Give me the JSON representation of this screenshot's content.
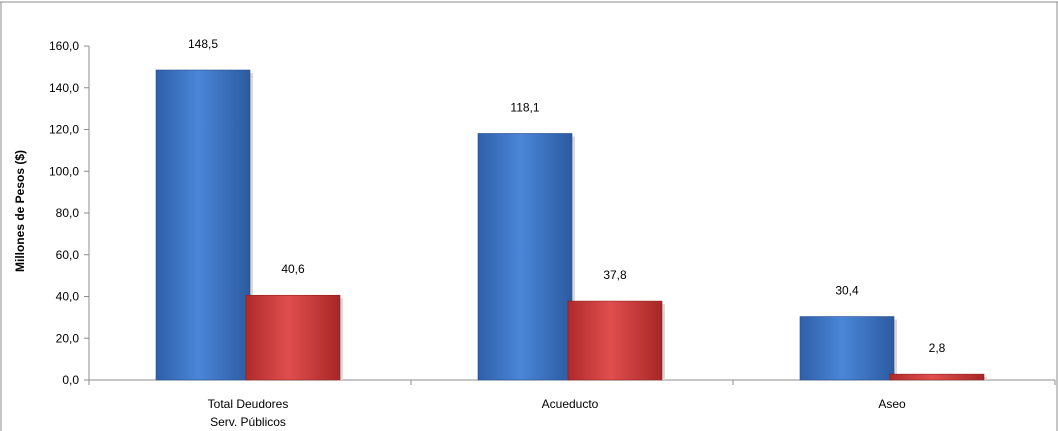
{
  "chart_data": {
    "type": "bar",
    "title": "",
    "xlabel": "",
    "ylabel": "Millones de Pesos ($)",
    "ylim": [
      0,
      160
    ],
    "yticks": [
      0,
      20,
      40,
      60,
      80,
      100,
      120,
      140,
      160
    ],
    "ytick_labels": [
      "0,0",
      "20,0",
      "40,0",
      "60,0",
      "80,0",
      "100,0",
      "120,0",
      "140,0",
      "160,0"
    ],
    "categories": [
      [
        "Total Deudores",
        "Serv. Públicos"
      ],
      [
        "Acueducto"
      ],
      [
        "Aseo"
      ]
    ],
    "series": [
      {
        "values": [
          148.5,
          118.1,
          30.4
        ],
        "labels": [
          "148,5",
          "118,1",
          "30,4"
        ],
        "color": "#3f78c8"
      },
      {
        "values": [
          40.6,
          37.8,
          2.8
        ],
        "labels": [
          "40,6",
          "37,8",
          "2,8"
        ],
        "color": "#d43c3c"
      }
    ],
    "grid": false,
    "legend": "none"
  }
}
